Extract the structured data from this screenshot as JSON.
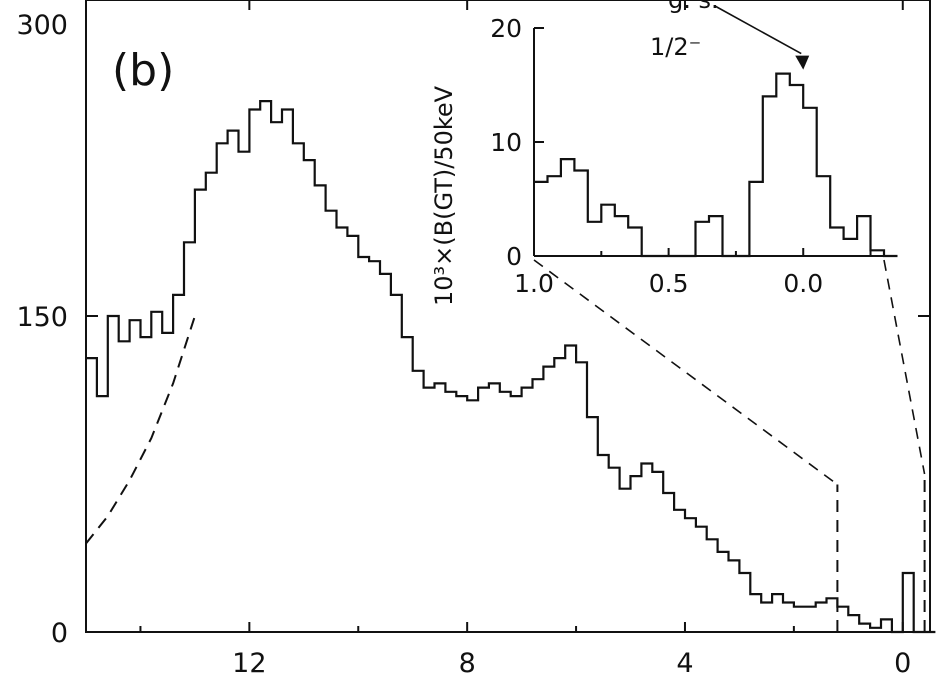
{
  "panel_label": "(b)",
  "chart_data": [
    {
      "type": "line",
      "role": "main",
      "x_direction": "decreasing",
      "xlim": [
        15.0,
        -0.5
      ],
      "ylim": [
        0,
        300
      ],
      "x_ticks": [
        12,
        8,
        4,
        0
      ],
      "y_ticks": [
        0,
        150,
        300
      ],
      "x_tick_labels": [
        "12",
        "8",
        "4",
        "0"
      ],
      "y_tick_labels": [
        "0",
        "150",
        "300"
      ],
      "series": [
        {
          "style": "histogram",
          "bin_width": 0.2,
          "x": [
            15.0,
            14.8,
            14.6,
            14.4,
            14.2,
            14.0,
            13.8,
            13.6,
            13.4,
            13.2,
            13.0,
            12.8,
            12.6,
            12.4,
            12.2,
            12.0,
            11.8,
            11.6,
            11.4,
            11.2,
            11.0,
            10.8,
            10.6,
            10.4,
            10.2,
            10.0,
            9.8,
            9.6,
            9.4,
            9.2,
            9.0,
            8.8,
            8.6,
            8.4,
            8.2,
            8.0,
            7.8,
            7.6,
            7.4,
            7.2,
            7.0,
            6.8,
            6.6,
            6.4,
            6.2,
            6.0,
            5.8,
            5.6,
            5.4,
            5.2,
            5.0,
            4.8,
            4.6,
            4.4,
            4.2,
            4.0,
            3.8,
            3.6,
            3.4,
            3.2,
            3.0,
            2.8,
            2.6,
            2.4,
            2.2,
            2.0,
            1.8,
            1.6,
            1.4,
            1.2,
            1.0,
            0.8,
            0.6,
            0.4,
            0.2,
            0.0,
            -0.2,
            -0.4
          ],
          "y": [
            130,
            112,
            150,
            138,
            148,
            140,
            152,
            142,
            160,
            185,
            210,
            218,
            232,
            238,
            228,
            248,
            252,
            242,
            248,
            232,
            224,
            212,
            200,
            192,
            188,
            178,
            176,
            170,
            160,
            140,
            124,
            116,
            118,
            114,
            112,
            110,
            116,
            118,
            114,
            112,
            116,
            120,
            126,
            130,
            136,
            128,
            102,
            84,
            78,
            68,
            74,
            80,
            76,
            66,
            58,
            54,
            50,
            44,
            38,
            34,
            28,
            18,
            14,
            18,
            14,
            12,
            12,
            14,
            16,
            12,
            8,
            4,
            2,
            6,
            0,
            28,
            0,
            0
          ]
        },
        {
          "style": "dashed",
          "x": [
            15.0,
            14.6,
            14.2,
            13.8,
            13.4,
            13.0
          ],
          "y": [
            42,
            55,
            72,
            92,
            118,
            150
          ]
        },
        {
          "style": "dashed",
          "x": [
            1.2,
            1.2
          ],
          "y": [
            0,
            70
          ]
        },
        {
          "style": "dashed",
          "x": [
            -0.4,
            -0.4
          ],
          "y": [
            0,
            75
          ]
        }
      ]
    },
    {
      "type": "line",
      "role": "inset",
      "x_direction": "decreasing",
      "xlim": [
        1.0,
        -0.3
      ],
      "ylim": [
        0,
        20
      ],
      "x_ticks": [
        1.0,
        0.5,
        0.0
      ],
      "y_ticks": [
        0,
        10,
        20
      ],
      "x_tick_labels": [
        "1.0",
        "0.5",
        "0.0"
      ],
      "y_tick_labels": [
        "0",
        "10",
        "20"
      ],
      "ylabel": "10³×(B(GT)/50keV",
      "annotations": [
        {
          "text_line1": "g. s.",
          "text_line2": "1/2⁻",
          "x": 0.0,
          "y": 16
        }
      ],
      "series": [
        {
          "style": "histogram",
          "bin_width": 0.05,
          "x": [
            1.0,
            0.95,
            0.9,
            0.85,
            0.8,
            0.75,
            0.7,
            0.65,
            0.6,
            0.55,
            0.5,
            0.45,
            0.4,
            0.35,
            0.3,
            0.25,
            0.2,
            0.15,
            0.1,
            0.05,
            0.0,
            -0.05,
            -0.1,
            -0.15,
            -0.2,
            -0.25,
            -0.3
          ],
          "y": [
            6.5,
            7,
            8.5,
            7.5,
            3,
            4.5,
            3.5,
            2.5,
            0,
            0,
            0,
            0,
            3,
            3.5,
            0,
            0,
            6.5,
            14,
            16,
            15,
            13,
            7,
            2.5,
            1.5,
            3.5,
            0.5,
            0
          ]
        }
      ]
    }
  ]
}
